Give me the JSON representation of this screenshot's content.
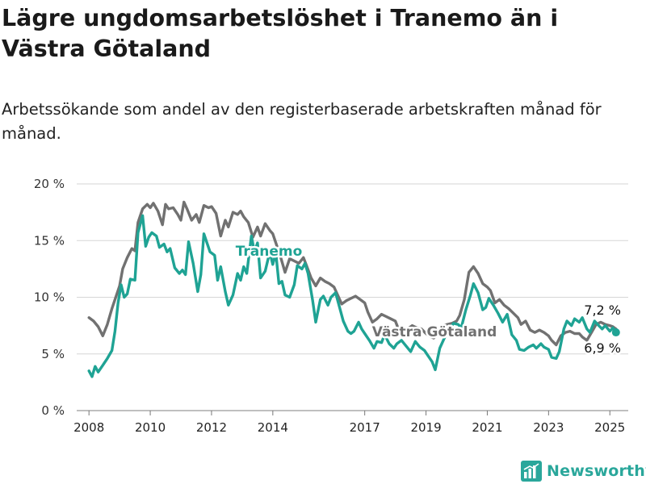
{
  "title": "Lägre ungdomsarbetslöshet i Tranemo än i Västra Götaland",
  "subtitle": "Arbetssökande som andel av den registerbaserade arbetskraften månad för månad.",
  "brand": {
    "name": "Newsworthy"
  },
  "chart_data": {
    "type": "line",
    "ylim": [
      0,
      20
    ],
    "xlim": [
      2007.6,
      2025.6
    ],
    "y_ticks": [
      {
        "value": 0,
        "label": "0 %"
      },
      {
        "value": 5,
        "label": "5 %"
      },
      {
        "value": 10,
        "label": "10 %"
      },
      {
        "value": 15,
        "label": "15 %"
      },
      {
        "value": 20,
        "label": "20 %"
      }
    ],
    "x_ticks": [
      {
        "value": 2008,
        "label": "2008"
      },
      {
        "value": 2010,
        "label": "2010"
      },
      {
        "value": 2012,
        "label": "2012"
      },
      {
        "value": 2014,
        "label": "2014"
      },
      {
        "value": 2017,
        "label": "2017"
      },
      {
        "value": 2019,
        "label": "2019"
      },
      {
        "value": 2021,
        "label": "2021"
      },
      {
        "value": 2023,
        "label": "2023"
      },
      {
        "value": 2025,
        "label": "2025"
      }
    ],
    "grid": true,
    "series": [
      {
        "name": "Västra Götaland",
        "color": "#717171",
        "end_label": "7,2 %",
        "points": [
          [
            2008.0,
            8.2
          ],
          [
            2008.15,
            7.9
          ],
          [
            2008.3,
            7.4
          ],
          [
            2008.45,
            6.6
          ],
          [
            2008.6,
            7.6
          ],
          [
            2008.75,
            9.0
          ],
          [
            2008.9,
            10.2
          ],
          [
            2009.0,
            11.0
          ],
          [
            2009.1,
            12.5
          ],
          [
            2009.25,
            13.5
          ],
          [
            2009.4,
            14.3
          ],
          [
            2009.5,
            14.1
          ],
          [
            2009.6,
            16.6
          ],
          [
            2009.75,
            17.8
          ],
          [
            2009.9,
            18.2
          ],
          [
            2010.0,
            17.9
          ],
          [
            2010.1,
            18.3
          ],
          [
            2010.25,
            17.6
          ],
          [
            2010.4,
            16.4
          ],
          [
            2010.5,
            18.2
          ],
          [
            2010.6,
            17.8
          ],
          [
            2010.75,
            17.9
          ],
          [
            2010.9,
            17.3
          ],
          [
            2011.0,
            16.8
          ],
          [
            2011.1,
            18.4
          ],
          [
            2011.2,
            17.8
          ],
          [
            2011.35,
            16.8
          ],
          [
            2011.5,
            17.3
          ],
          [
            2011.6,
            16.6
          ],
          [
            2011.75,
            18.1
          ],
          [
            2011.9,
            17.9
          ],
          [
            2012.0,
            18.0
          ],
          [
            2012.15,
            17.4
          ],
          [
            2012.3,
            15.4
          ],
          [
            2012.45,
            16.8
          ],
          [
            2012.55,
            16.2
          ],
          [
            2012.7,
            17.5
          ],
          [
            2012.85,
            17.3
          ],
          [
            2012.95,
            17.6
          ],
          [
            2013.05,
            17.1
          ],
          [
            2013.2,
            16.6
          ],
          [
            2013.35,
            15.3
          ],
          [
            2013.5,
            16.2
          ],
          [
            2013.6,
            15.4
          ],
          [
            2013.75,
            16.5
          ],
          [
            2013.9,
            15.9
          ],
          [
            2014.0,
            15.6
          ],
          [
            2014.1,
            14.8
          ],
          [
            2014.25,
            13.6
          ],
          [
            2014.4,
            12.2
          ],
          [
            2014.55,
            13.4
          ],
          [
            2014.7,
            13.2
          ],
          [
            2014.85,
            13.0
          ],
          [
            2015.0,
            13.5
          ],
          [
            2015.1,
            12.8
          ],
          [
            2015.25,
            11.7
          ],
          [
            2015.4,
            11.0
          ],
          [
            2015.55,
            11.7
          ],
          [
            2015.7,
            11.4
          ],
          [
            2015.85,
            11.2
          ],
          [
            2016.0,
            10.9
          ],
          [
            2016.1,
            10.3
          ],
          [
            2016.25,
            9.4
          ],
          [
            2016.4,
            9.7
          ],
          [
            2016.55,
            9.9
          ],
          [
            2016.7,
            10.1
          ],
          [
            2016.85,
            9.8
          ],
          [
            2017.0,
            9.5
          ],
          [
            2017.1,
            8.7
          ],
          [
            2017.25,
            7.8
          ],
          [
            2017.4,
            8.1
          ],
          [
            2017.55,
            8.5
          ],
          [
            2017.7,
            8.3
          ],
          [
            2017.85,
            8.1
          ],
          [
            2018.0,
            7.9
          ],
          [
            2018.1,
            7.2
          ],
          [
            2018.25,
            6.8
          ],
          [
            2018.4,
            7.2
          ],
          [
            2018.55,
            7.5
          ],
          [
            2018.7,
            7.3
          ],
          [
            2018.85,
            7.2
          ],
          [
            2019.0,
            6.8
          ],
          [
            2019.1,
            6.6
          ],
          [
            2019.25,
            6.4
          ],
          [
            2019.4,
            6.9
          ],
          [
            2019.55,
            7.5
          ],
          [
            2019.7,
            7.6
          ],
          [
            2019.85,
            7.7
          ],
          [
            2020.0,
            7.9
          ],
          [
            2020.1,
            8.4
          ],
          [
            2020.25,
            9.8
          ],
          [
            2020.4,
            12.2
          ],
          [
            2020.55,
            12.7
          ],
          [
            2020.7,
            12.1
          ],
          [
            2020.85,
            11.2
          ],
          [
            2021.0,
            10.9
          ],
          [
            2021.1,
            10.6
          ],
          [
            2021.25,
            9.5
          ],
          [
            2021.4,
            9.8
          ],
          [
            2021.55,
            9.3
          ],
          [
            2021.7,
            9.0
          ],
          [
            2021.85,
            8.6
          ],
          [
            2022.0,
            8.2
          ],
          [
            2022.1,
            7.6
          ],
          [
            2022.25,
            7.9
          ],
          [
            2022.4,
            7.1
          ],
          [
            2022.55,
            6.9
          ],
          [
            2022.7,
            7.1
          ],
          [
            2022.85,
            6.9
          ],
          [
            2023.0,
            6.6
          ],
          [
            2023.1,
            6.2
          ],
          [
            2023.25,
            5.8
          ],
          [
            2023.4,
            6.6
          ],
          [
            2023.55,
            6.9
          ],
          [
            2023.7,
            7.0
          ],
          [
            2023.85,
            6.8
          ],
          [
            2024.0,
            6.8
          ],
          [
            2024.1,
            6.5
          ],
          [
            2024.25,
            6.2
          ],
          [
            2024.4,
            6.9
          ],
          [
            2024.55,
            7.6
          ],
          [
            2024.7,
            7.8
          ],
          [
            2024.85,
            7.6
          ],
          [
            2025.0,
            7.5
          ],
          [
            2025.1,
            7.4
          ],
          [
            2025.2,
            7.2
          ]
        ]
      },
      {
        "name": "Tranemo",
        "color": "#1fa394",
        "end_label": "6,9 %",
        "points": [
          [
            2008.0,
            3.5
          ],
          [
            2008.1,
            3.0
          ],
          [
            2008.2,
            3.9
          ],
          [
            2008.3,
            3.4
          ],
          [
            2008.45,
            4.0
          ],
          [
            2008.6,
            4.6
          ],
          [
            2008.75,
            5.3
          ],
          [
            2008.85,
            7.0
          ],
          [
            2008.95,
            9.5
          ],
          [
            2009.05,
            11.1
          ],
          [
            2009.15,
            10.0
          ],
          [
            2009.25,
            10.3
          ],
          [
            2009.35,
            11.6
          ],
          [
            2009.5,
            11.5
          ],
          [
            2009.6,
            15.7
          ],
          [
            2009.75,
            17.2
          ],
          [
            2009.85,
            14.5
          ],
          [
            2009.95,
            15.3
          ],
          [
            2010.05,
            15.7
          ],
          [
            2010.2,
            15.4
          ],
          [
            2010.3,
            14.4
          ],
          [
            2010.45,
            14.7
          ],
          [
            2010.55,
            14.0
          ],
          [
            2010.65,
            14.3
          ],
          [
            2010.8,
            12.6
          ],
          [
            2010.95,
            12.1
          ],
          [
            2011.05,
            12.4
          ],
          [
            2011.15,
            12.0
          ],
          [
            2011.25,
            14.9
          ],
          [
            2011.4,
            13.0
          ],
          [
            2011.55,
            10.5
          ],
          [
            2011.65,
            12.0
          ],
          [
            2011.75,
            15.6
          ],
          [
            2011.85,
            14.8
          ],
          [
            2011.95,
            14.0
          ],
          [
            2012.1,
            13.7
          ],
          [
            2012.2,
            11.5
          ],
          [
            2012.3,
            12.7
          ],
          [
            2012.45,
            10.5
          ],
          [
            2012.55,
            9.3
          ],
          [
            2012.7,
            10.2
          ],
          [
            2012.85,
            12.1
          ],
          [
            2012.95,
            11.5
          ],
          [
            2013.05,
            12.7
          ],
          [
            2013.15,
            12.1
          ],
          [
            2013.3,
            15.4
          ],
          [
            2013.4,
            14.0
          ],
          [
            2013.5,
            14.8
          ],
          [
            2013.6,
            11.7
          ],
          [
            2013.75,
            12.3
          ],
          [
            2013.9,
            14.0
          ],
          [
            2014.0,
            12.9
          ],
          [
            2014.1,
            13.9
          ],
          [
            2014.2,
            11.2
          ],
          [
            2014.3,
            11.4
          ],
          [
            2014.4,
            10.2
          ],
          [
            2014.55,
            10.0
          ],
          [
            2014.7,
            11.1
          ],
          [
            2014.8,
            12.8
          ],
          [
            2014.95,
            12.5
          ],
          [
            2015.05,
            13.0
          ],
          [
            2015.15,
            12.1
          ],
          [
            2015.3,
            9.7
          ],
          [
            2015.4,
            7.8
          ],
          [
            2015.55,
            9.8
          ],
          [
            2015.65,
            10.1
          ],
          [
            2015.8,
            9.3
          ],
          [
            2015.9,
            10.0
          ],
          [
            2016.05,
            10.4
          ],
          [
            2016.15,
            9.4
          ],
          [
            2016.3,
            7.9
          ],
          [
            2016.45,
            7.0
          ],
          [
            2016.55,
            6.8
          ],
          [
            2016.65,
            7.0
          ],
          [
            2016.8,
            7.8
          ],
          [
            2016.9,
            7.2
          ],
          [
            2017.0,
            6.8
          ],
          [
            2017.15,
            6.2
          ],
          [
            2017.3,
            5.5
          ],
          [
            2017.4,
            6.1
          ],
          [
            2017.55,
            6.0
          ],
          [
            2017.65,
            6.7
          ],
          [
            2017.8,
            5.9
          ],
          [
            2017.95,
            5.5
          ],
          [
            2018.05,
            5.9
          ],
          [
            2018.2,
            6.2
          ],
          [
            2018.35,
            5.7
          ],
          [
            2018.5,
            5.2
          ],
          [
            2018.65,
            6.1
          ],
          [
            2018.8,
            5.6
          ],
          [
            2018.95,
            5.3
          ],
          [
            2019.05,
            4.9
          ],
          [
            2019.2,
            4.3
          ],
          [
            2019.3,
            3.6
          ],
          [
            2019.45,
            5.5
          ],
          [
            2019.6,
            6.4
          ],
          [
            2019.75,
            7.2
          ],
          [
            2019.9,
            7.7
          ],
          [
            2020.05,
            7.6
          ],
          [
            2020.15,
            7.3
          ],
          [
            2020.3,
            8.9
          ],
          [
            2020.45,
            10.2
          ],
          [
            2020.55,
            11.2
          ],
          [
            2020.7,
            10.4
          ],
          [
            2020.85,
            8.9
          ],
          [
            2020.95,
            9.1
          ],
          [
            2021.05,
            9.9
          ],
          [
            2021.2,
            9.3
          ],
          [
            2021.35,
            8.6
          ],
          [
            2021.5,
            7.8
          ],
          [
            2021.65,
            8.5
          ],
          [
            2021.8,
            6.7
          ],
          [
            2021.95,
            6.2
          ],
          [
            2022.05,
            5.4
          ],
          [
            2022.2,
            5.3
          ],
          [
            2022.35,
            5.6
          ],
          [
            2022.5,
            5.8
          ],
          [
            2022.6,
            5.5
          ],
          [
            2022.75,
            5.9
          ],
          [
            2022.85,
            5.6
          ],
          [
            2023.0,
            5.4
          ],
          [
            2023.1,
            4.7
          ],
          [
            2023.25,
            4.6
          ],
          [
            2023.35,
            5.2
          ],
          [
            2023.5,
            7.2
          ],
          [
            2023.6,
            7.9
          ],
          [
            2023.75,
            7.5
          ],
          [
            2023.85,
            8.1
          ],
          [
            2024.0,
            7.8
          ],
          [
            2024.1,
            8.2
          ],
          [
            2024.25,
            7.2
          ],
          [
            2024.35,
            6.9
          ],
          [
            2024.5,
            7.9
          ],
          [
            2024.6,
            7.6
          ],
          [
            2024.75,
            7.2
          ],
          [
            2024.85,
            7.5
          ],
          [
            2025.0,
            7.0
          ],
          [
            2025.1,
            7.3
          ],
          [
            2025.2,
            6.9
          ]
        ]
      }
    ]
  }
}
